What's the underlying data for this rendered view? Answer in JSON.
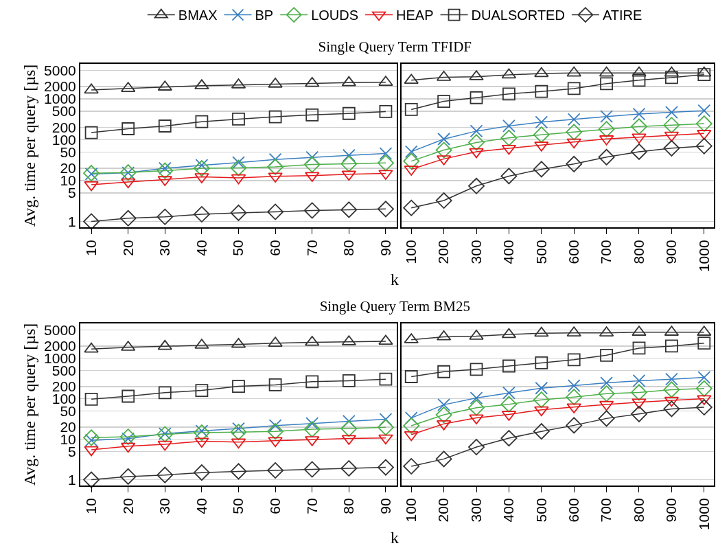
{
  "chart_data": [
    {
      "type": "line",
      "title": "Single Query Term TFIDF",
      "ylabel": "Avg. time per query [µs]",
      "xlabel": "k",
      "categories": [
        "10",
        "20",
        "30",
        "40",
        "50",
        "60",
        "70",
        "80",
        "90"
      ],
      "log": true,
      "ylim": [
        0.72,
        7200
      ],
      "yticks": [
        1,
        5,
        10,
        20,
        50,
        100,
        200,
        500,
        1000,
        2000,
        5000
      ],
      "grid": "y",
      "legend": "top",
      "series": [
        {
          "name": "BMAX",
          "color": "#333333",
          "marker": "triangle",
          "values": [
            1650,
            1800,
            1950,
            2100,
            2200,
            2300,
            2400,
            2500,
            2550
          ]
        },
        {
          "name": "BP",
          "color": "#3a7fc1",
          "marker": "cross",
          "values": [
            14.5,
            15.6,
            20,
            23.7,
            27.7,
            33,
            37,
            41.5,
            46
          ]
        },
        {
          "name": "LOUDS",
          "color": "#4daf4a",
          "marker": "diamond",
          "values": [
            15.2,
            15.8,
            17.5,
            20,
            20.5,
            21.7,
            24.8,
            25.8,
            27
          ]
        },
        {
          "name": "HEAP",
          "color": "#e41a1c",
          "marker": "triangle-down",
          "values": [
            7.9,
            9.3,
            10.6,
            12.4,
            11.7,
            12.8,
            13.3,
            14.3,
            15
          ]
        },
        {
          "name": "DUALSORTED",
          "color": "#333333",
          "marker": "square",
          "values": [
            150,
            186,
            217,
            277,
            320,
            365,
            405,
            440,
            490
          ]
        },
        {
          "name": "ATIRE",
          "color": "#333333",
          "marker": "diamond",
          "values": [
            1,
            1.2,
            1.3,
            1.5,
            1.63,
            1.72,
            1.86,
            1.94,
            2.02
          ]
        }
      ]
    },
    {
      "type": "line",
      "categories": [
        "100",
        "200",
        "300",
        "400",
        "500",
        "600",
        "700",
        "800",
        "900",
        "1000"
      ],
      "log": true,
      "ylim": [
        0.72,
        7200
      ],
      "yticks": [
        1,
        5,
        10,
        20,
        50,
        100,
        200,
        500,
        1000,
        2000,
        5000
      ],
      "grid": "y",
      "tick_labels": "x",
      "series": [
        {
          "color": "#333333",
          "marker": "triangle",
          "values": [
            2860,
            3380,
            3500,
            3870,
            4170,
            4300,
            4300,
            4300,
            4300,
            4300
          ]
        },
        {
          "color": "#3a7fc1",
          "marker": "cross",
          "values": [
            51,
            104,
            163,
            218,
            270,
            316,
            370,
            426,
            470,
            515
          ]
        },
        {
          "color": "#4daf4a",
          "marker": "diamond",
          "values": [
            30,
            56,
            86,
            111,
            133,
            154,
            181,
            210,
            228,
            248
          ]
        },
        {
          "color": "#e41a1c",
          "marker": "triangle-down",
          "values": [
            19,
            34,
            51,
            61.5,
            74,
            88,
            105,
            116,
            129,
            143
          ]
        },
        {
          "color": "#333333",
          "marker": "square",
          "values": [
            550,
            870,
            1070,
            1320,
            1520,
            1790,
            2360,
            2860,
            3330,
            3930
          ]
        },
        {
          "color": "#333333",
          "marker": "diamond",
          "values": [
            2.15,
            3.25,
            7.4,
            12.9,
            19,
            25.5,
            37.5,
            51,
            62,
            70
          ]
        }
      ]
    },
    {
      "type": "line",
      "title": "Single Query Term BM25",
      "ylabel": "Avg. time per query [µs]",
      "xlabel": "k",
      "categories": [
        "10",
        "20",
        "30",
        "40",
        "50",
        "60",
        "70",
        "80",
        "90"
      ],
      "log": true,
      "ylim": [
        0.72,
        7200
      ],
      "yticks": [
        1,
        5,
        10,
        20,
        50,
        100,
        200,
        500,
        1000,
        2000,
        5000
      ],
      "grid": "y",
      "series": [
        {
          "color": "#333333",
          "marker": "triangle",
          "values": [
            1680,
            1860,
            1960,
            2090,
            2200,
            2340,
            2470,
            2540,
            2620
          ]
        },
        {
          "color": "#3a7fc1",
          "marker": "cross",
          "values": [
            9.4,
            10.3,
            13.7,
            16,
            18.3,
            21.7,
            24.4,
            27.8,
            31
          ]
        },
        {
          "color": "#4daf4a",
          "marker": "diamond",
          "values": [
            10.9,
            11.5,
            13.2,
            14.5,
            15,
            15.6,
            17.6,
            18.3,
            19.6
          ]
        },
        {
          "color": "#e41a1c",
          "marker": "triangle-down",
          "values": [
            5.5,
            6.7,
            7.5,
            8.9,
            8.5,
            9.2,
            9.7,
            10.4,
            10.7
          ]
        },
        {
          "color": "#333333",
          "marker": "square",
          "values": [
            97,
            115,
            141,
            160,
            202,
            220,
            263,
            278,
            303
          ]
        },
        {
          "color": "#333333",
          "marker": "diamond",
          "values": [
            1,
            1.2,
            1.31,
            1.5,
            1.61,
            1.7,
            1.8,
            1.91,
            2.02
          ]
        }
      ]
    },
    {
      "type": "line",
      "categories": [
        "100",
        "200",
        "300",
        "400",
        "500",
        "600",
        "700",
        "800",
        "900",
        "1000"
      ],
      "log": true,
      "ylim": [
        0.72,
        7200
      ],
      "yticks": [
        1,
        5,
        10,
        20,
        50,
        100,
        200,
        500,
        1000,
        2000,
        5000
      ],
      "grid": "y",
      "tick_labels": "x",
      "series": [
        {
          "color": "#333333",
          "marker": "triangle",
          "values": [
            2860,
            3370,
            3490,
            3840,
            4140,
            4200,
            4200,
            4380,
            4380,
            4380
          ]
        },
        {
          "color": "#3a7fc1",
          "marker": "cross",
          "values": [
            33.5,
            71,
            104,
            139,
            182,
            210,
            246,
            278,
            303,
            336
          ]
        },
        {
          "color": "#4daf4a",
          "marker": "diamond",
          "values": [
            21.5,
            40,
            60,
            73,
            94,
            110,
            133,
            143,
            167,
            178
          ]
        },
        {
          "color": "#e41a1c",
          "marker": "triangle-down",
          "values": [
            12.9,
            24,
            33.5,
            41,
            53,
            62.5,
            72,
            82,
            91,
            100
          ]
        },
        {
          "color": "#333333",
          "marker": "square",
          "values": [
            350,
            464,
            530,
            640,
            765,
            915,
            1180,
            1770,
            1990,
            2350
          ]
        },
        {
          "color": "#333333",
          "marker": "diamond",
          "values": [
            2.15,
            3.25,
            6.4,
            10.6,
            15.6,
            22,
            32.5,
            42,
            56,
            61.5
          ]
        }
      ]
    }
  ]
}
